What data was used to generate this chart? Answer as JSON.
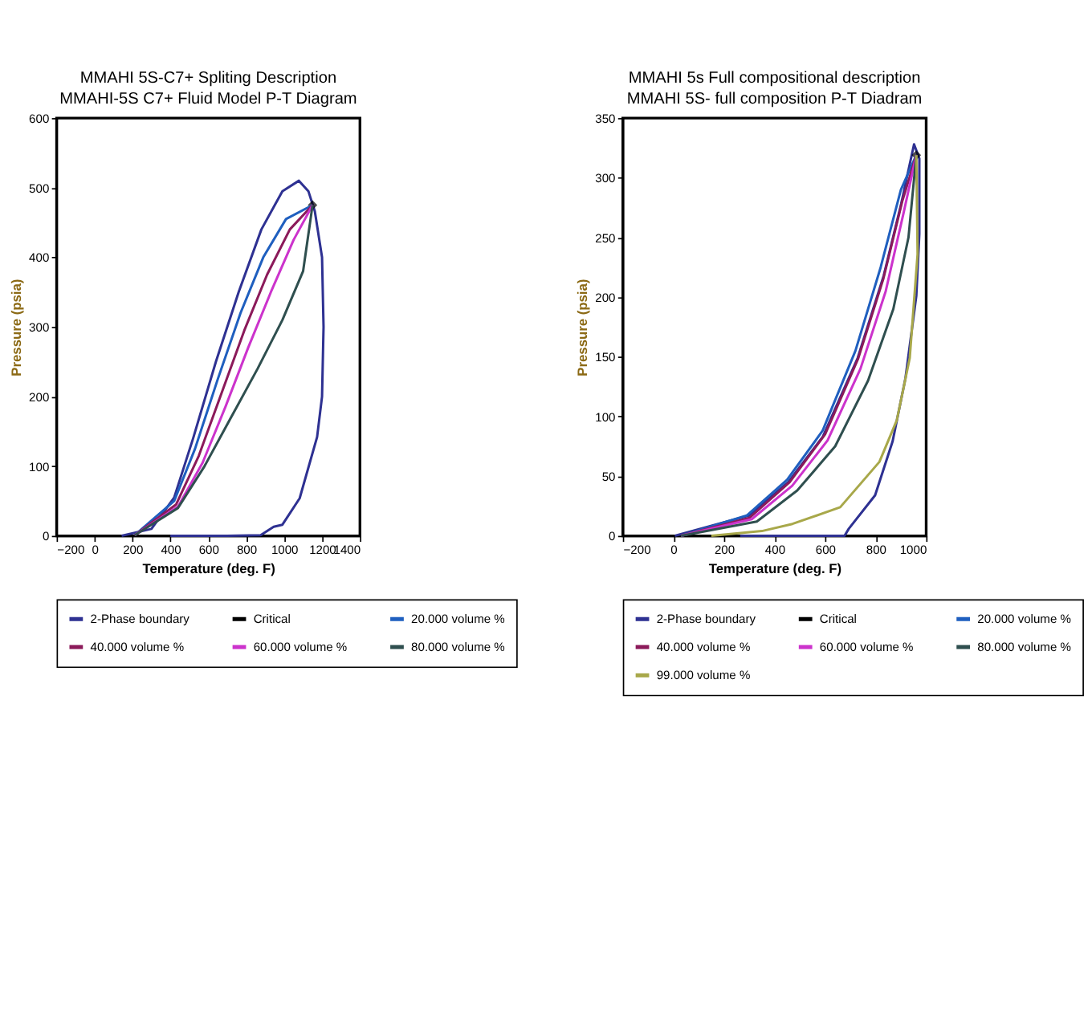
{
  "chart_data": [
    {
      "type": "line",
      "title": "MMAHI 5S-C7+ Spliting Description",
      "subtitle": "MMAHI-5S C7+ Fluid Model P-T Diagram",
      "xlabel": "Temperature (deg. F)",
      "ylabel": "Pressure (psia)",
      "xlim": [
        -200,
        1400
      ],
      "xticks": [
        -200,
        0,
        200,
        400,
        600,
        800,
        1000,
        1200,
        1400
      ],
      "ylim": [
        0,
        600
      ],
      "yticks": [
        0,
        100,
        200,
        300,
        400,
        500,
        600
      ],
      "grid": false,
      "legend": "bottom",
      "line_style": "solid",
      "series": [
        {
          "name": "2-Phase boundary",
          "color": "#2e3192",
          "x": [
            143,
            300,
            420,
            520,
            640,
            760,
            880,
            991,
            1078,
            1128,
            1162,
            1200,
            1208,
            1200,
            1174,
            1082,
            991,
            945,
            876,
            700,
            400
          ],
          "values": [
            0,
            10,
            55,
            140,
            250,
            350,
            440,
            495,
            510,
            495,
            466,
            400,
            300,
            200,
            142,
            54,
            16,
            13,
            1,
            0,
            0
          ]
        },
        {
          "name": "Critical",
          "type": "scatter",
          "marker": "diamond",
          "color": "#000000",
          "x": [
            1150
          ],
          "values": [
            475
          ]
        },
        {
          "name": "20.000 volume %",
          "color": "#1f5fbf",
          "x": [
            212,
            420,
            530,
            650,
            770,
            890,
            1010,
            1150
          ],
          "values": [
            1,
            50,
            125,
            225,
            320,
            400,
            455,
            475
          ]
        },
        {
          "name": "40.000 volume %",
          "color": "#8b1a5a",
          "x": [
            212,
            430,
            550,
            670,
            790,
            910,
            1030,
            1150
          ],
          "values": [
            1,
            45,
            115,
            205,
            295,
            375,
            440,
            475
          ]
        },
        {
          "name": "60.000 volume %",
          "color": "#cc33cc",
          "x": [
            212,
            440,
            570,
            690,
            810,
            930,
            1050,
            1150
          ],
          "values": [
            1,
            42,
            105,
            185,
            270,
            350,
            425,
            475
          ]
        },
        {
          "name": "80.000 volume %",
          "color": "#2f4f4f",
          "x": [
            212,
            440,
            580,
            720,
            860,
            991,
            1100,
            1150
          ],
          "values": [
            1,
            40,
            100,
            170,
            240,
            310,
            380,
            475
          ]
        }
      ]
    },
    {
      "type": "line",
      "title": "MMAHI 5s Full  compositional description",
      "subtitle": "MMAHI 5S- full composition  P-T Diadram",
      "xlabel": "Temperature (deg. F)",
      "ylabel": "Pressure (psia)",
      "xlim": [
        -200,
        1000
      ],
      "xticks": [
        -200,
        0,
        200,
        400,
        600,
        800,
        1000
      ],
      "ylim": [
        0,
        350
      ],
      "yticks": [
        0,
        50,
        100,
        150,
        200,
        250,
        300,
        350
      ],
      "grid": false,
      "legend": "bottom",
      "line_style": "solid",
      "series": [
        {
          "name": "2-Phase boundary",
          "color": "#2e3192",
          "x": [
            6,
            299,
            454,
            591,
            729,
            832,
            901,
            952,
            973,
            973,
            961,
            918,
            867,
            798,
            694,
            677,
            264
          ],
          "values": [
            0,
            17,
            45,
            83,
            149,
            218,
            278,
            328,
            316,
            253,
            201,
            132,
            79,
            34,
            6,
            0,
            0
          ]
        },
        {
          "name": "Critical",
          "type": "scatter",
          "marker": "diamond",
          "color": "#000000",
          "x": [
            961
          ],
          "values": [
            319
          ]
        },
        {
          "name": "20.000 volume %",
          "color": "#1f5fbf",
          "x": [
            30,
            290,
            450,
            590,
            720,
            820,
            900,
            961
          ],
          "values": [
            0,
            17,
            47,
            88,
            155,
            225,
            290,
            319
          ]
        },
        {
          "name": "40.000 volume %",
          "color": "#8b1a5a",
          "x": [
            30,
            300,
            460,
            600,
            730,
            830,
            905,
            961
          ],
          "values": [
            0,
            15,
            45,
            85,
            148,
            215,
            280,
            319
          ]
        },
        {
          "name": "60.000 volume %",
          "color": "#cc33cc",
          "x": [
            30,
            310,
            470,
            610,
            740,
            840,
            910,
            961
          ],
          "values": [
            0,
            14,
            42,
            80,
            140,
            205,
            270,
            319
          ]
        },
        {
          "name": "80.000 volume %",
          "color": "#2f4f4f",
          "x": [
            30,
            330,
            490,
            640,
            770,
            870,
            930,
            961
          ],
          "values": [
            0,
            12,
            38,
            75,
            130,
            190,
            250,
            319
          ]
        },
        {
          "name": "99.000 volume %",
          "color": "#a8a84a",
          "x": [
            150,
            350,
            471,
            660,
            815,
            884,
            935,
            966,
            961
          ],
          "values": [
            0,
            4,
            10,
            24,
            62,
            97,
            149,
            236,
            319
          ]
        }
      ]
    }
  ]
}
